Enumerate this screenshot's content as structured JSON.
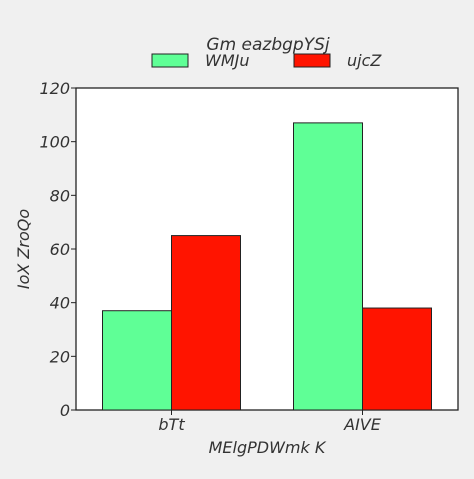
{
  "chart_data": {
    "type": "bar",
    "title": "",
    "legend_title": "Gm eazbgpYSj",
    "xlabel": "MElgPDWmk K",
    "ylabel": "IoX ZroQo",
    "categories": [
      "bTt",
      "AIVE"
    ],
    "series": [
      {
        "name": "WMJu",
        "values": [
          37,
          107
        ],
        "color": "#5fff96"
      },
      {
        "name": "ujcZ",
        "values": [
          65,
          38
        ],
        "color": "#ff1400"
      }
    ],
    "ylim": [
      0,
      120
    ],
    "yticks": [
      0,
      20,
      40,
      60,
      80,
      100,
      120
    ],
    "grid": false,
    "legend_position": "top-center",
    "background_color": "#f0f0f0",
    "plot_background_color": "#ffffff"
  }
}
